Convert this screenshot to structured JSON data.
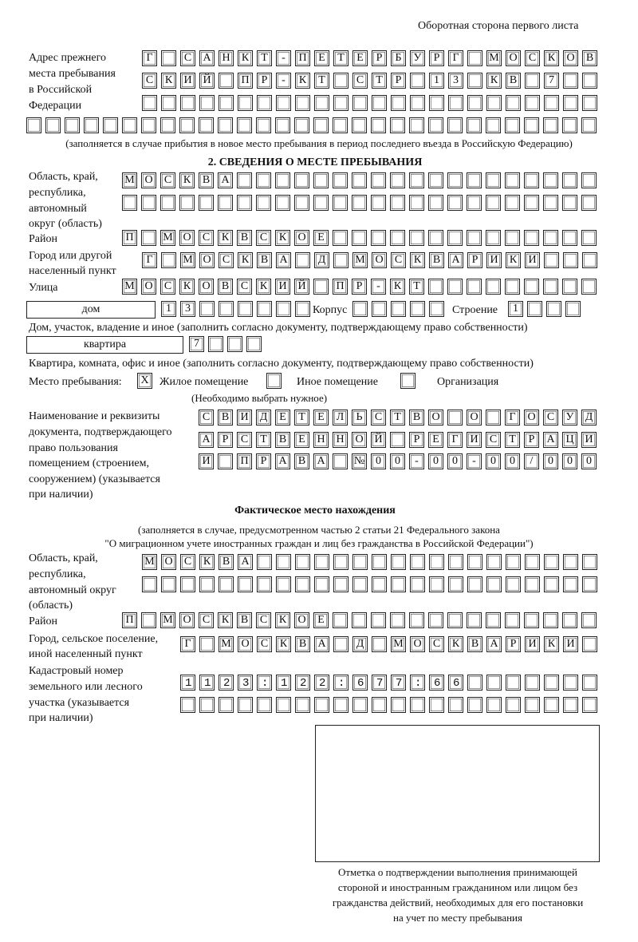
{
  "header": "Оборотная сторона первого листа",
  "previous_address": {
    "label": [
      "Адрес прежнего",
      "места пребывания",
      "в Российской",
      "Федерации"
    ],
    "rows": [
      "Г САНКТ-ПЕТЕРБУРГ МОСКОВ",
      "СКИЙ ПР-КТ СТР 13 КВ 7",
      ""
    ],
    "extra_row": "",
    "note": "(заполняется в случае прибытия в новое место пребывания в период последнего въезда в Российскую Федерацию)"
  },
  "section2": {
    "title": "2. СВЕДЕНИЯ О МЕСТЕ ПРЕБЫВАНИЯ",
    "region_label": [
      "Область, край,",
      "республика,",
      "автономный",
      "округ (область)"
    ],
    "region_rows": [
      "МОСКВА",
      ""
    ],
    "district_label": "Район",
    "district": "П МОСКВСКОЕ",
    "city_label": [
      "Город или другой",
      "населенный пункт"
    ],
    "city": "Г МОСКВА Д МОСКВАРИКИ",
    "street_label": "Улица",
    "street": "МОСКОВСКИЙ ПР-КТ",
    "house_type": "дом",
    "house": "13",
    "korpus_label": "Корпус",
    "korpus": "",
    "building_label": "Строение",
    "building": "1",
    "house_note": "Дом, участок, владение и иное (заполнить согласно документу, подтверждающему право собственности)",
    "apt_type": "квартира",
    "apt": "7",
    "apt_note": "Квартира, комната, офис и иное (заполнить согласно документу, подтверждающему право собственности)",
    "stay_label": "Место пребывания:",
    "options": [
      {
        "label": "Жилое помещение",
        "mark": "X"
      },
      {
        "label": "Иное помещение",
        "mark": ""
      },
      {
        "label": "Организация",
        "mark": ""
      }
    ],
    "choose_note": "(Необходимо выбрать нужное)",
    "doc_label": [
      "Наименование и реквизиты",
      "документа, подтверждающего",
      "право пользования",
      "помещением (строением,",
      "сооружением) (указывается",
      "при наличии)"
    ],
    "doc_rows": [
      "СВИДЕТЕЛЬСТВО О ГОСУД",
      "АРСТВЕННОЙ РЕГИСТРАЦИ",
      "И ПРАВА №00-00-00/000"
    ]
  },
  "actual": {
    "title": "Фактическое место нахождения",
    "note": [
      "(заполняется в случае, предусмотренном частью 2 статьи 21 Федерального закона",
      "\"О миграционном учете иностранных граждан и лиц без гражданства в Российской Федерации\")"
    ],
    "region_label": [
      "Область, край,",
      "республика,",
      "автономный округ",
      "(область)"
    ],
    "region_rows": [
      "МОСКВА",
      ""
    ],
    "district_label": "Район",
    "district": "П МОСКВСКОЕ",
    "city_label": [
      "Город, сельское поселение,",
      "иной населенный пункт"
    ],
    "city": "Г МОСКВА Д МОСКВАРИКИ",
    "cadastre_label": [
      "Кадастровый номер",
      "земельного или лесного",
      "участка (указывается",
      "при наличии)"
    ],
    "cadastre_rows": [
      "1123:122:677:66",
      ""
    ]
  },
  "stamp_caption": [
    "Отметка о подтверждении выполнения принимающей",
    "стороной и иностранным гражданином или лицом без",
    "гражданства действий, необходимых для его постановки",
    "на учет по месту пребывания"
  ]
}
